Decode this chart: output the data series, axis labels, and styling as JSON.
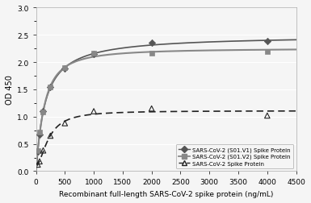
{
  "series1_label": "SARS-CoV-2 (S01.V1) Spike Protein",
  "series2_label": "SARS-CoV-2 (S01.V2) Spike Protein",
  "series3_label": "SARS-CoV-2 Spike Protein",
  "x_s1": [
    31.25,
    62.5,
    125,
    250,
    500,
    1000,
    2000,
    4000
  ],
  "y_s1": [
    0.36,
    0.67,
    1.1,
    1.55,
    1.88,
    2.15,
    2.35,
    2.38
  ],
  "x_s2": [
    31.25,
    62.5,
    125,
    250,
    500,
    1000,
    2000,
    4000
  ],
  "y_s2": [
    0.37,
    0.72,
    1.08,
    1.54,
    1.9,
    2.17,
    2.17,
    2.2
  ],
  "x_s3": [
    31.25,
    62.5,
    125,
    250,
    500,
    1000,
    2000,
    4000
  ],
  "y_s3": [
    0.12,
    0.18,
    0.38,
    0.65,
    0.88,
    1.1,
    1.15,
    1.02
  ],
  "color_s1": "#555555",
  "color_s2": "#888888",
  "color_s3": "#222222",
  "xlabel": "Recombinant full-length SARS-CoV-2 spike protein (ng/mL)",
  "ylabel": "OD 450",
  "xlim": [
    0,
    4500
  ],
  "ylim": [
    0,
    3
  ],
  "xticks": [
    0,
    500,
    1000,
    1500,
    2000,
    2500,
    3000,
    3500,
    4000,
    4500
  ],
  "yticks": [
    0,
    0.5,
    1.0,
    1.5,
    2.0,
    2.5,
    3.0
  ],
  "bg_color": "#f0f0f0"
}
